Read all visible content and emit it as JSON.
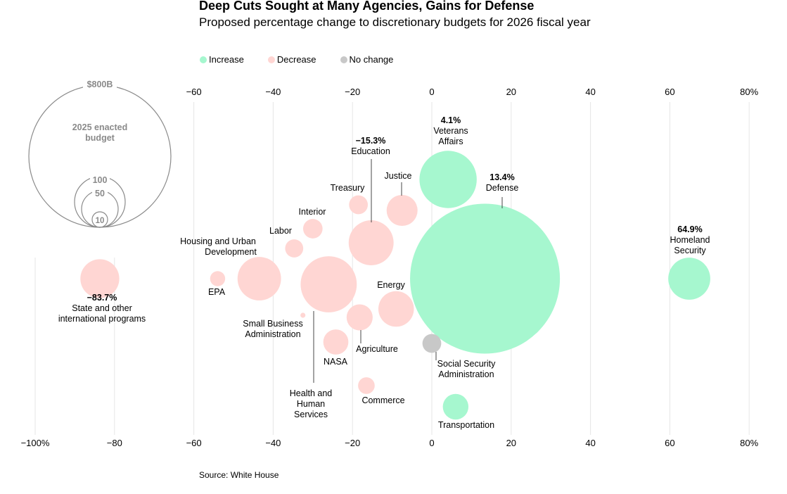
{
  "header": {
    "title": "Deep Cuts Sought at Many Agencies, Gains for Defense",
    "subtitle": "Proposed percentage change to discretionary budgets for 2026 fiscal year"
  },
  "legend": [
    {
      "label": "Increase",
      "color": "#a6f7cf"
    },
    {
      "label": "Decrease",
      "color": "#ffd6d3"
    },
    {
      "label": "No change",
      "color": "#c8c8c8"
    }
  ],
  "size_key": {
    "top_label": "$800B",
    "inner_label": "2025 enacted budget",
    "rings": [
      "100",
      "50",
      "10"
    ]
  },
  "source": "Source: White House",
  "chart_data": {
    "type": "scatter",
    "title": "Deep Cuts Sought at Many Agencies, Gains for Defense",
    "subtitle": "Proposed percentage change to discretionary budgets for 2026 fiscal year",
    "xlim": [
      -100,
      80
    ],
    "x_unit": "%",
    "top_ticks": [
      "−60",
      "−40",
      "−20",
      "0",
      "20",
      "40",
      "60",
      "80%"
    ],
    "bottom_ticks": [
      "−100%",
      "−80",
      "−60",
      "−40",
      "−20",
      "0",
      "20",
      "40",
      "60",
      "80%"
    ],
    "size_encodes": "2025 enacted budget",
    "points": [
      {
        "name": "State and other international programs",
        "value_label": "−83.7%",
        "x": -83.7,
        "budget": 60,
        "category": "Decrease"
      },
      {
        "name": "EPA",
        "value_label": "",
        "x": -54.0,
        "budget": 9,
        "category": "Decrease"
      },
      {
        "name": "Housing and Urban Development",
        "value_label": "",
        "x": -43.5,
        "budget": 75,
        "category": "Decrease"
      },
      {
        "name": "Labor",
        "value_label": "",
        "x": -34.7,
        "budget": 13,
        "category": "Decrease"
      },
      {
        "name": "Small Business Administration",
        "value_label": "",
        "x": -32.5,
        "budget": 1,
        "category": "Decrease"
      },
      {
        "name": "Interior",
        "value_label": "",
        "x": -30.0,
        "budget": 15,
        "category": "Decrease"
      },
      {
        "name": "Health and Human Services",
        "value_label": "",
        "x": -26.0,
        "budget": 125,
        "category": "Decrease"
      },
      {
        "name": "NASA",
        "value_label": "",
        "x": -24.2,
        "budget": 25,
        "category": "Decrease"
      },
      {
        "name": "Treasury",
        "value_label": "",
        "x": -18.5,
        "budget": 14,
        "category": "Decrease"
      },
      {
        "name": "Agriculture",
        "value_label": "",
        "x": -18.2,
        "budget": 27,
        "category": "Decrease"
      },
      {
        "name": "Commerce",
        "value_label": "",
        "x": -16.5,
        "budget": 11,
        "category": "Decrease"
      },
      {
        "name": "Education",
        "value_label": "−15.3%",
        "x": -15.3,
        "budget": 80,
        "category": "Decrease"
      },
      {
        "name": "Energy",
        "value_label": "",
        "x": -9.0,
        "budget": 50,
        "category": "Decrease"
      },
      {
        "name": "Justice",
        "value_label": "",
        "x": -7.5,
        "budget": 38,
        "category": "Decrease"
      },
      {
        "name": "Social Security Administration",
        "value_label": "",
        "x": 0,
        "budget": 14,
        "category": "No change"
      },
      {
        "name": "Veterans Affairs",
        "value_label": "4.1%",
        "x": 4.1,
        "budget": 130,
        "category": "Increase"
      },
      {
        "name": "Transportation",
        "value_label": "",
        "x": 6.0,
        "budget": 26,
        "category": "Increase"
      },
      {
        "name": "Defense",
        "value_label": "13.4%",
        "x": 13.4,
        "budget": 890,
        "category": "Increase"
      },
      {
        "name": "Homeland Security",
        "value_label": "64.9%",
        "x": 64.9,
        "budget": 70,
        "category": "Increase"
      }
    ]
  }
}
